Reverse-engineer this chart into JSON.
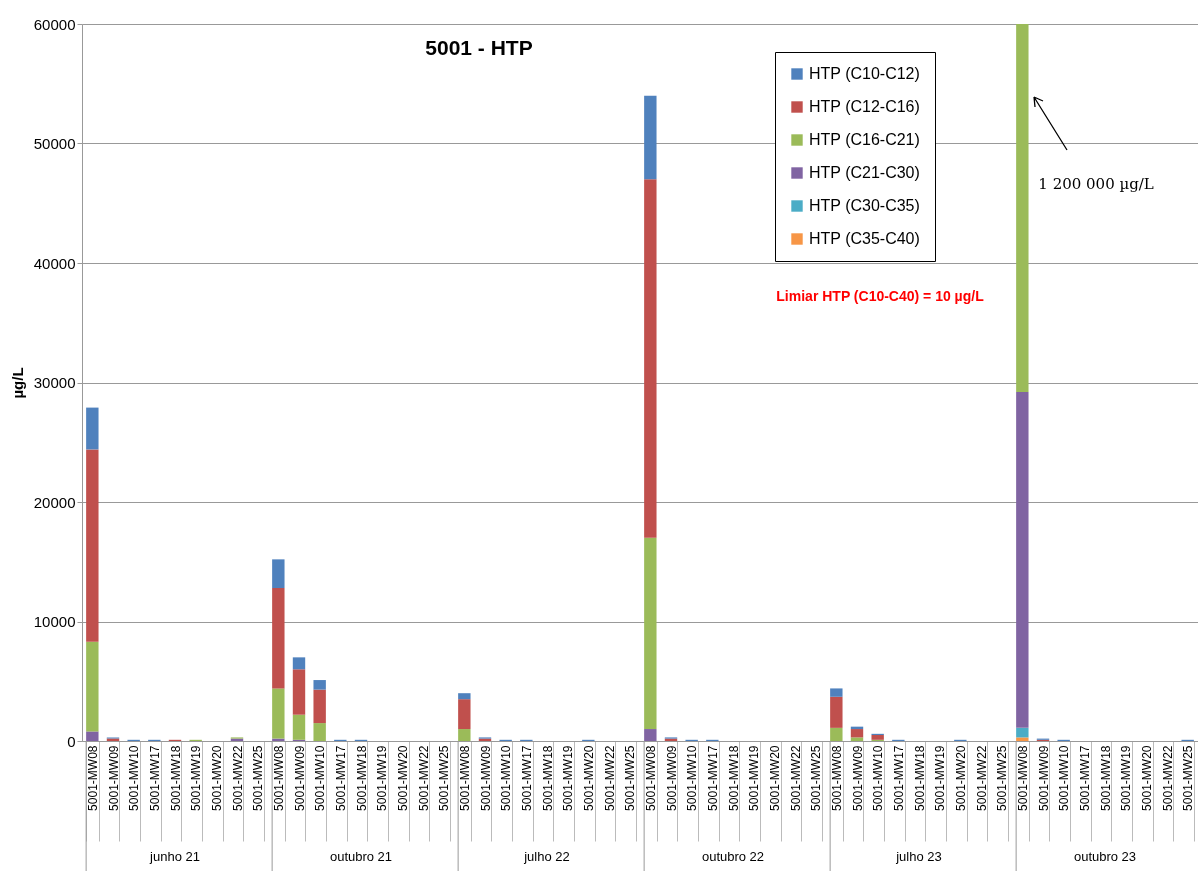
{
  "chart_data": {
    "type": "bar",
    "title": "5001  - HTP",
    "ylabel": "µg/L",
    "stacked": true,
    "categories": [
      "5001-MW08",
      "5001-MW09",
      "5001-MW10",
      "5001-MW17",
      "5001-MW18",
      "5001-MW19",
      "5001-MW20",
      "5001-MW22",
      "5001-MW25",
      "5001-MW08",
      "5001-MW09",
      "5001-MW10",
      "5001-MW17",
      "5001-MW18",
      "5001-MW19",
      "5001-MW20",
      "5001-MW22",
      "5001-MW25",
      "5001-MW08",
      "5001-MW09",
      "5001-MW10",
      "5001-MW17",
      "5001-MW18",
      "5001-MW19",
      "5001-MW20",
      "5001-MW22",
      "5001-MW25",
      "5001-MW08",
      "5001-MW09",
      "5001-MW10",
      "5001-MW17",
      "5001-MW18",
      "5001-MW19",
      "5001-MW20",
      "5001-MW22",
      "5001-MW25",
      "5001-MW08",
      "5001-MW09",
      "5001-MW10",
      "5001-MW17",
      "5001-MW18",
      "5001-MW19",
      "5001-MW20",
      "5001-MW22",
      "5001-MW25",
      "5001-MW08",
      "5001-MW09",
      "5001-MW10",
      "5001-MW17",
      "5001-MW18",
      "5001-MW19",
      "5001-MW20",
      "5001-MW22",
      "5001-MW25"
    ],
    "series": [
      {
        "name": "HTP (C35-C40)",
        "color": "#f79646",
        "values": [
          null,
          null,
          null,
          null,
          null,
          null,
          null,
          null,
          null,
          null,
          null,
          null,
          null,
          null,
          null,
          null,
          null,
          null,
          null,
          null,
          null,
          null,
          null,
          null,
          null,
          null,
          null,
          null,
          null,
          null,
          null,
          null,
          null,
          null,
          null,
          null,
          null,
          null,
          null,
          null,
          null,
          null,
          null,
          null,
          null,
          300,
          null,
          null,
          null,
          null,
          null,
          null,
          null,
          null
        ]
      },
      {
        "name": "HTP (C30-C35)",
        "color": "#4bacc6",
        "values": [
          null,
          null,
          null,
          null,
          null,
          null,
          null,
          null,
          null,
          null,
          null,
          null,
          null,
          null,
          null,
          null,
          null,
          null,
          null,
          null,
          null,
          null,
          null,
          null,
          null,
          null,
          null,
          null,
          null,
          null,
          null,
          null,
          null,
          null,
          null,
          null,
          null,
          null,
          null,
          null,
          null,
          null,
          null,
          null,
          null,
          800,
          null,
          null,
          null,
          null,
          null,
          null,
          null,
          null
        ]
      },
      {
        "name": "HTP (C21-C30)",
        "color": "#8064a2",
        "values": [
          800,
          null,
          null,
          null,
          null,
          null,
          null,
          200,
          null,
          200,
          100,
          null,
          null,
          null,
          null,
          null,
          null,
          null,
          null,
          null,
          null,
          null,
          null,
          null,
          null,
          null,
          null,
          1000,
          null,
          null,
          null,
          null,
          null,
          null,
          null,
          null,
          null,
          null,
          null,
          null,
          null,
          null,
          null,
          null,
          null,
          28100,
          null,
          null,
          null,
          null,
          null,
          null,
          null,
          null
        ]
      },
      {
        "name": "HTP (C16-C21)",
        "color": "#9bbb59",
        "values": [
          7500,
          null,
          null,
          null,
          null,
          100,
          null,
          100,
          null,
          4200,
          2100,
          1500,
          null,
          null,
          null,
          null,
          null,
          null,
          1000,
          null,
          null,
          null,
          null,
          null,
          null,
          null,
          null,
          16000,
          null,
          null,
          null,
          null,
          null,
          null,
          null,
          null,
          1100,
          300,
          100,
          null,
          null,
          null,
          null,
          null,
          null,
          30800,
          null,
          null,
          null,
          null,
          null,
          null,
          null,
          null
        ]
      },
      {
        "name": "HTP (C12-C16)",
        "color": "#c0504d",
        "values": [
          16100,
          200,
          null,
          null,
          100,
          null,
          null,
          null,
          null,
          8400,
          3800,
          2800,
          null,
          null,
          null,
          null,
          null,
          null,
          2500,
          200,
          null,
          null,
          null,
          null,
          null,
          null,
          null,
          30000,
          200,
          null,
          null,
          null,
          null,
          null,
          null,
          null,
          2600,
          700,
          400,
          null,
          null,
          null,
          null,
          null,
          null,
          null,
          100,
          null,
          null,
          null,
          null,
          null,
          null,
          null
        ]
      },
      {
        "name": "HTP (C10-C12)",
        "color": "#4f81bd",
        "values": [
          3500,
          100,
          100,
          100,
          null,
          null,
          null,
          null,
          null,
          2400,
          1000,
          800,
          100,
          100,
          null,
          null,
          null,
          null,
          500,
          100,
          100,
          100,
          null,
          null,
          100,
          null,
          null,
          7000,
          100,
          100,
          100,
          null,
          null,
          null,
          null,
          null,
          700,
          200,
          100,
          100,
          null,
          null,
          100,
          null,
          null,
          null,
          100,
          100,
          null,
          null,
          null,
          null,
          null,
          100
        ]
      }
    ],
    "ylim": [
      0,
      60000
    ],
    "yticks": [
      0,
      10000,
      20000,
      30000,
      40000,
      50000,
      60000
    ],
    "grid": "y",
    "legend": "top right",
    "annotations": [
      "Limiar HTP (C10-C40) = 10 µg/L",
      "1 200 000 µg/L",
      "junho 21",
      "outubro 21",
      "julho 22",
      "outubro 22",
      "julho 23",
      "outubro 23"
    ]
  }
}
